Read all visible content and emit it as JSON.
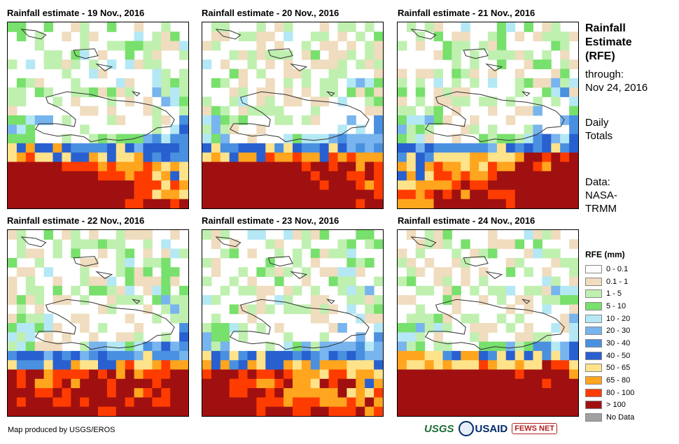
{
  "panels": [
    {
      "title": "Rainfall estimate - 19 Nov., 2016"
    },
    {
      "title": "Rainfall estimate - 20 Nov., 2016"
    },
    {
      "title": "Rainfall estimate - 21 Nov., 2016"
    },
    {
      "title": "Rainfall estimate - 22 Nov., 2016"
    },
    {
      "title": "Rainfall estimate - 23 Nov., 2016"
    },
    {
      "title": "Rainfall estimate - 24 Nov., 2016"
    }
  ],
  "side": {
    "heading": [
      "Rainfall",
      "Estimate",
      "(RFE)"
    ],
    "through_label": "through:",
    "through_date": "Nov 24, 2016",
    "totals": [
      "Daily",
      "Totals"
    ],
    "source": [
      "Data:",
      "NASA-",
      "TRMM"
    ]
  },
  "legend": {
    "title": "RFE (mm)",
    "items": [
      {
        "label": "0 - 0.1",
        "color": "#ffffff"
      },
      {
        "label": "0.1 - 1",
        "color": "#f0dcbe"
      },
      {
        "label": "1 - 5",
        "color": "#bff0b0"
      },
      {
        "label": "5 - 10",
        "color": "#78e06c"
      },
      {
        "label": "10 - 20",
        "color": "#b4e8f5"
      },
      {
        "label": "20 - 30",
        "color": "#78b4ee"
      },
      {
        "label": "30 - 40",
        "color": "#4a90e0"
      },
      {
        "label": "40 - 50",
        "color": "#2860d0"
      },
      {
        "label": "50 - 65",
        "color": "#ffe38a"
      },
      {
        "label": "65 - 80",
        "color": "#ffa51e"
      },
      {
        "label": "80 - 100",
        "color": "#ff3c00"
      },
      {
        "label": "> 100",
        "color": "#a01010"
      },
      {
        "label": "No Data",
        "color": "#a0a0a0"
      }
    ]
  },
  "credit": "Map produced by USGS/EROS",
  "logos": {
    "usgs": "USGS",
    "usaid": "USAID",
    "fews": "FEWS NET"
  }
}
